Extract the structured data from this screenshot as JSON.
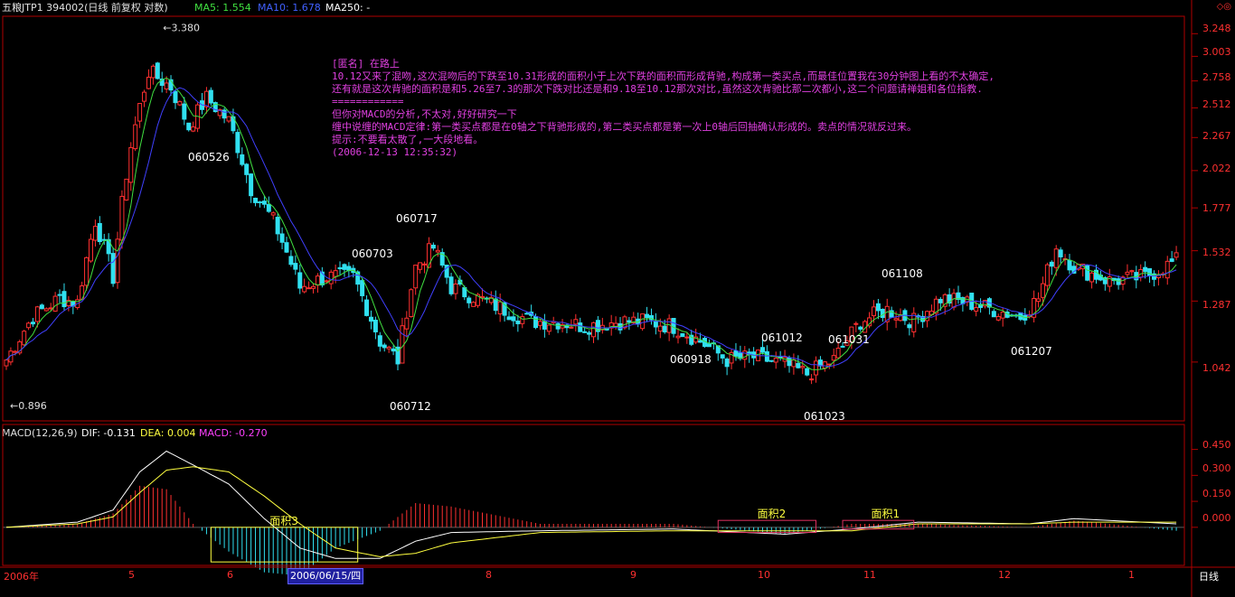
{
  "header": {
    "security": "五粮JTP1 394002(日线 前复权 对数)",
    "ma5_label": "MA5: 1.554",
    "ma10_label": "MA10: 1.678",
    "ma250_label": "MA250: -",
    "macd_label": "MACD(12,26,9)",
    "dif_label": "DIF: -0.131",
    "dea_label": "DEA: 0.004",
    "macd_value_label": "MACD: -0.270",
    "corner_icons": "◇◎",
    "period": "日线",
    "selected_date": "2006/06/15/四"
  },
  "annotation": {
    "lines": [
      "[匿名] 在路上",
      "10.12又来了混吻,这次混吻后的下跌至10.31形成的面积小于上次下跌的面积而形成背驰,构成第一类买点,而最佳位置我在30分钟图上看的不太确定,",
      "还有就是这次背驰的面积是和5.26至7.3的那次下跌对比还是和9.18至10.12那次对比,虽然这次背驰比那二次都小,这二个问题请禅姐和各位指教.",
      "============",
      "但你对MACD的分析,不太对,好好研究一下",
      "缠中说缠的MACD定律:第一类买点都是在0轴之下背驰形成的,第二类买点都是第一次上0轴后回抽确认形成的。卖点的情况就反过来。",
      "提示:不要看太散了,一大段地看。",
      "(2006-12-13 12:35:32)"
    ]
  },
  "colors": {
    "up": "#ff3030",
    "down": "#30e0f0",
    "ma5": "#e0e040",
    "ma10_price": "#40e040",
    "ma10_alt": "#4040ff",
    "dif": "#ffffff",
    "dea": "#ffff40",
    "macd_label": "#ff40ff",
    "axis": "#b00000"
  },
  "chart_data": {
    "type": "candlestick",
    "title": "五粮JTP1 394002",
    "y_scale": "log",
    "ylim": [
      0.85,
      3.45
    ],
    "y_ticks": [
      "3.248",
      "3.003",
      "2.758",
      "2.512",
      "2.267",
      "2.022",
      "1.777",
      "1.532",
      "1.287",
      "1.042"
    ],
    "x_ticks": [
      "2006年",
      "5",
      "6",
      "8",
      "9",
      "10",
      "11",
      "12",
      "1"
    ],
    "extremes": {
      "high": "3.380",
      "low": "0.896"
    },
    "date_labels": [
      "060526",
      "060703",
      "060717",
      "060712",
      "060918",
      "061012",
      "061031",
      "061023",
      "061108",
      "061207"
    ],
    "anchors": [
      {
        "i": 0,
        "c": 1.05
      },
      {
        "i": 6,
        "c": 1.22
      },
      {
        "i": 12,
        "c": 1.3
      },
      {
        "i": 16,
        "c": 1.28
      },
      {
        "i": 20,
        "c": 1.7
      },
      {
        "i": 24,
        "c": 1.4
      },
      {
        "i": 28,
        "c": 2.2
      },
      {
        "i": 32,
        "c": 2.85
      },
      {
        "i": 37,
        "c": 2.7
      },
      {
        "i": 41,
        "c": 2.35
      },
      {
        "i": 45,
        "c": 2.6
      },
      {
        "i": 50,
        "c": 2.4
      },
      {
        "i": 55,
        "c": 1.9
      },
      {
        "i": 60,
        "c": 1.7
      },
      {
        "i": 66,
        "c": 1.35
      },
      {
        "i": 72,
        "c": 1.4
      },
      {
        "i": 78,
        "c": 1.4
      },
      {
        "i": 84,
        "c": 1.12
      },
      {
        "i": 88,
        "c": 1.05
      },
      {
        "i": 92,
        "c": 1.45
      },
      {
        "i": 96,
        "c": 1.55
      },
      {
        "i": 100,
        "c": 1.35
      },
      {
        "i": 106,
        "c": 1.3
      },
      {
        "i": 112,
        "c": 1.25
      },
      {
        "i": 118,
        "c": 1.2
      },
      {
        "i": 124,
        "c": 1.2
      },
      {
        "i": 130,
        "c": 1.18
      },
      {
        "i": 138,
        "c": 1.2
      },
      {
        "i": 144,
        "c": 1.2
      },
      {
        "i": 150,
        "c": 1.18
      },
      {
        "i": 156,
        "c": 1.12
      },
      {
        "i": 162,
        "c": 1.05
      },
      {
        "i": 168,
        "c": 1.06
      },
      {
        "i": 174,
        "c": 1.04
      },
      {
        "i": 180,
        "c": 1.0
      },
      {
        "i": 186,
        "c": 1.05
      },
      {
        "i": 192,
        "c": 1.2
      },
      {
        "i": 198,
        "c": 1.25
      },
      {
        "i": 204,
        "c": 1.2
      },
      {
        "i": 210,
        "c": 1.3
      },
      {
        "i": 216,
        "c": 1.28
      },
      {
        "i": 222,
        "c": 1.25
      },
      {
        "i": 228,
        "c": 1.22
      },
      {
        "i": 232,
        "c": 1.3
      },
      {
        "i": 236,
        "c": 1.55
      },
      {
        "i": 240,
        "c": 1.45
      },
      {
        "i": 248,
        "c": 1.38
      },
      {
        "i": 256,
        "c": 1.4
      },
      {
        "i": 263,
        "c": 1.48
      }
    ],
    "macd": {
      "ylim": [
        -0.22,
        0.5
      ],
      "y_ticks": [
        "0.450",
        "0.300",
        "0.150",
        "0.000"
      ],
      "anchors": [
        {
          "i": 0,
          "dif": 0.0,
          "dea": 0.0
        },
        {
          "i": 16,
          "dif": 0.03,
          "dea": 0.02
        },
        {
          "i": 24,
          "dif": 0.1,
          "dea": 0.06
        },
        {
          "i": 30,
          "dif": 0.32,
          "dea": 0.2
        },
        {
          "i": 36,
          "dif": 0.44,
          "dea": 0.33
        },
        {
          "i": 42,
          "dif": 0.36,
          "dea": 0.35
        },
        {
          "i": 50,
          "dif": 0.25,
          "dea": 0.32
        },
        {
          "i": 58,
          "dif": 0.05,
          "dea": 0.18
        },
        {
          "i": 66,
          "dif": -0.12,
          "dea": 0.02
        },
        {
          "i": 74,
          "dif": -0.18,
          "dea": -0.12
        },
        {
          "i": 84,
          "dif": -0.18,
          "dea": -0.17
        },
        {
          "i": 92,
          "dif": -0.08,
          "dea": -0.15
        },
        {
          "i": 100,
          "dif": -0.03,
          "dea": -0.09
        },
        {
          "i": 120,
          "dif": -0.02,
          "dea": -0.03
        },
        {
          "i": 150,
          "dif": -0.01,
          "dea": -0.02
        },
        {
          "i": 175,
          "dif": -0.04,
          "dea": -0.02
        },
        {
          "i": 190,
          "dif": -0.01,
          "dea": -0.02
        },
        {
          "i": 205,
          "dif": 0.03,
          "dea": 0.02
        },
        {
          "i": 230,
          "dif": 0.02,
          "dea": 0.02
        },
        {
          "i": 240,
          "dif": 0.05,
          "dea": 0.03
        },
        {
          "i": 263,
          "dif": 0.02,
          "dea": 0.03
        }
      ],
      "boxes": [
        {
          "label": "面积3",
          "i0": 46,
          "i1": 79,
          "y0": 0.0,
          "y1": -0.2,
          "color": "#ffff40"
        },
        {
          "label": "面积2",
          "i0": 160,
          "i1": 182,
          "y0": 0.04,
          "y1": -0.03,
          "color": "#e03060"
        },
        {
          "label": "面积1",
          "i0": 188,
          "i1": 204,
          "y0": 0.04,
          "y1": -0.01,
          "color": "#e03060"
        }
      ]
    }
  }
}
